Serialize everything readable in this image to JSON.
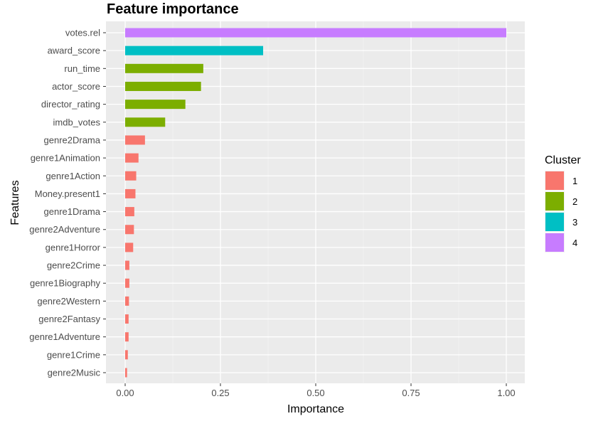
{
  "chart_data": {
    "type": "bar",
    "orientation": "horizontal",
    "title": "Feature importance",
    "xlabel": "Importance",
    "ylabel": "Features",
    "xlim": [
      0,
      1
    ],
    "x_ticks": [
      0,
      0.25,
      0.5,
      0.75,
      1
    ],
    "x_tick_labels": [
      "0.00",
      "0.25",
      "0.50",
      "0.75",
      "1.00"
    ],
    "grid": true,
    "legend": {
      "title": "Cluster",
      "position": "right",
      "entries": [
        {
          "label": "1",
          "color": "#F8766D"
        },
        {
          "label": "2",
          "color": "#7CAE00"
        },
        {
          "label": "3",
          "color": "#00BFC4"
        },
        {
          "label": "4",
          "color": "#C77CFF"
        }
      ]
    },
    "bars": [
      {
        "feature": "votes.rel",
        "value": 1.0,
        "cluster": "4"
      },
      {
        "feature": "award_score",
        "value": 0.362,
        "cluster": "3"
      },
      {
        "feature": "run_time",
        "value": 0.205,
        "cluster": "2"
      },
      {
        "feature": "actor_score",
        "value": 0.199,
        "cluster": "2"
      },
      {
        "feature": "director_rating",
        "value": 0.158,
        "cluster": "2"
      },
      {
        "feature": "imdb_votes",
        "value": 0.105,
        "cluster": "2"
      },
      {
        "feature": "genre2Drama",
        "value": 0.052,
        "cluster": "1"
      },
      {
        "feature": "genre1Animation",
        "value": 0.035,
        "cluster": "1"
      },
      {
        "feature": "genre1Action",
        "value": 0.029,
        "cluster": "1"
      },
      {
        "feature": "Money.present1",
        "value": 0.027,
        "cluster": "1"
      },
      {
        "feature": "genre1Drama",
        "value": 0.024,
        "cluster": "1"
      },
      {
        "feature": "genre2Adventure",
        "value": 0.023,
        "cluster": "1"
      },
      {
        "feature": "genre1Horror",
        "value": 0.021,
        "cluster": "1"
      },
      {
        "feature": "genre2Crime",
        "value": 0.011,
        "cluster": "1"
      },
      {
        "feature": "genre1Biography",
        "value": 0.011,
        "cluster": "1"
      },
      {
        "feature": "genre2Western",
        "value": 0.01,
        "cluster": "1"
      },
      {
        "feature": "genre2Fantasy",
        "value": 0.009,
        "cluster": "1"
      },
      {
        "feature": "genre1Adventure",
        "value": 0.009,
        "cluster": "1"
      },
      {
        "feature": "genre1Crime",
        "value": 0.007,
        "cluster": "1"
      },
      {
        "feature": "genre2Music",
        "value": 0.005,
        "cluster": "1"
      }
    ]
  }
}
